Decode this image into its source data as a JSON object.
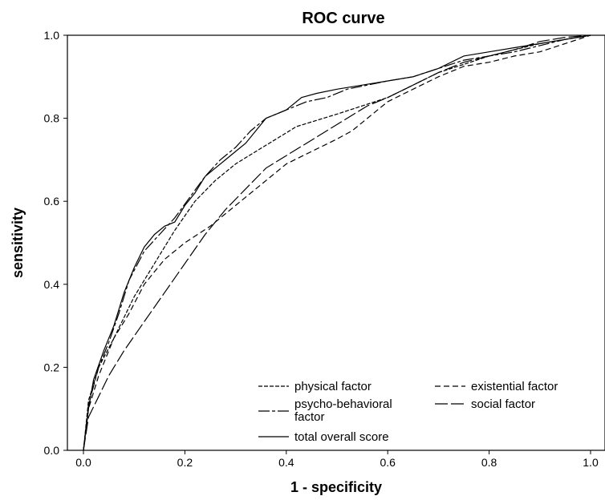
{
  "chart_data": {
    "type": "line",
    "title": "ROC curve",
    "xlabel": "1 - specificity",
    "ylabel": "sensitivity",
    "xlim": [
      0.0,
      1.0
    ],
    "ylim": [
      0.0,
      1.0
    ],
    "xticks": [
      "0.0",
      "0.2",
      "0.4",
      "0.6",
      "0.8",
      "1.0"
    ],
    "yticks": [
      "0.0",
      "0.2",
      "0.4",
      "0.6",
      "0.8",
      "1.0"
    ],
    "grid": false,
    "legend_position": "bottom-right",
    "colors": {
      "line": "#000000",
      "background": "#ffffff"
    },
    "series": [
      {
        "name": "physical factor",
        "dash": "short",
        "points": [
          [
            0,
            0
          ],
          [
            0.01,
            0.12
          ],
          [
            0.03,
            0.2
          ],
          [
            0.06,
            0.27
          ],
          [
            0.1,
            0.37
          ],
          [
            0.14,
            0.45
          ],
          [
            0.18,
            0.53
          ],
          [
            0.22,
            0.6
          ],
          [
            0.26,
            0.65
          ],
          [
            0.3,
            0.69
          ],
          [
            0.34,
            0.72
          ],
          [
            0.38,
            0.75
          ],
          [
            0.42,
            0.78
          ],
          [
            0.46,
            0.795
          ],
          [
            0.5,
            0.81
          ],
          [
            0.55,
            0.83
          ],
          [
            0.6,
            0.85
          ],
          [
            0.65,
            0.88
          ],
          [
            0.7,
            0.91
          ],
          [
            0.75,
            0.93
          ],
          [
            0.8,
            0.95
          ],
          [
            0.85,
            0.965
          ],
          [
            0.9,
            0.98
          ],
          [
            0.95,
            0.99
          ],
          [
            1,
            1
          ]
        ]
      },
      {
        "name": "existential factor",
        "dash": "medium",
        "points": [
          [
            0,
            0
          ],
          [
            0.01,
            0.1
          ],
          [
            0.03,
            0.18
          ],
          [
            0.06,
            0.27
          ],
          [
            0.09,
            0.33
          ],
          [
            0.12,
            0.4
          ],
          [
            0.16,
            0.46
          ],
          [
            0.2,
            0.5
          ],
          [
            0.25,
            0.54
          ],
          [
            0.3,
            0.59
          ],
          [
            0.35,
            0.64
          ],
          [
            0.4,
            0.69
          ],
          [
            0.45,
            0.72
          ],
          [
            0.5,
            0.75
          ],
          [
            0.53,
            0.77
          ],
          [
            0.56,
            0.8
          ],
          [
            0.6,
            0.84
          ],
          [
            0.65,
            0.87
          ],
          [
            0.7,
            0.9
          ],
          [
            0.75,
            0.925
          ],
          [
            0.8,
            0.935
          ],
          [
            0.85,
            0.95
          ],
          [
            0.9,
            0.96
          ],
          [
            0.95,
            0.98
          ],
          [
            1,
            1
          ]
        ]
      },
      {
        "name": "psycho-behavioral factor",
        "dash": "long-short",
        "points": [
          [
            0,
            0
          ],
          [
            0.01,
            0.11
          ],
          [
            0.03,
            0.2
          ],
          [
            0.05,
            0.26
          ],
          [
            0.07,
            0.33
          ],
          [
            0.09,
            0.41
          ],
          [
            0.12,
            0.48
          ],
          [
            0.15,
            0.52
          ],
          [
            0.18,
            0.56
          ],
          [
            0.21,
            0.61
          ],
          [
            0.24,
            0.66
          ],
          [
            0.27,
            0.7
          ],
          [
            0.3,
            0.73
          ],
          [
            0.33,
            0.77
          ],
          [
            0.36,
            0.8
          ],
          [
            0.4,
            0.82
          ],
          [
            0.44,
            0.84
          ],
          [
            0.48,
            0.85
          ],
          [
            0.52,
            0.87
          ],
          [
            0.56,
            0.88
          ],
          [
            0.6,
            0.89
          ],
          [
            0.65,
            0.9
          ],
          [
            0.7,
            0.92
          ],
          [
            0.75,
            0.94
          ],
          [
            0.8,
            0.95
          ],
          [
            0.85,
            0.96
          ],
          [
            0.9,
            0.975
          ],
          [
            0.95,
            0.99
          ],
          [
            1,
            1
          ]
        ]
      },
      {
        "name": "social factor",
        "dash": "long",
        "points": [
          [
            0,
            0
          ],
          [
            0.01,
            0.08
          ],
          [
            0.03,
            0.13
          ],
          [
            0.05,
            0.18
          ],
          [
            0.08,
            0.24
          ],
          [
            0.12,
            0.31
          ],
          [
            0.16,
            0.38
          ],
          [
            0.2,
            0.45
          ],
          [
            0.24,
            0.52
          ],
          [
            0.28,
            0.58
          ],
          [
            0.32,
            0.63
          ],
          [
            0.36,
            0.68
          ],
          [
            0.4,
            0.71
          ],
          [
            0.44,
            0.74
          ],
          [
            0.48,
            0.77
          ],
          [
            0.52,
            0.8
          ],
          [
            0.56,
            0.83
          ],
          [
            0.6,
            0.85
          ],
          [
            0.65,
            0.88
          ],
          [
            0.7,
            0.91
          ],
          [
            0.75,
            0.935
          ],
          [
            0.8,
            0.95
          ],
          [
            0.85,
            0.965
          ],
          [
            0.9,
            0.985
          ],
          [
            0.95,
            0.995
          ],
          [
            1,
            1
          ]
        ]
      },
      {
        "name": "total overall score",
        "dash": "solid",
        "points": [
          [
            0,
            0
          ],
          [
            0.01,
            0.1
          ],
          [
            0.02,
            0.17
          ],
          [
            0.04,
            0.24
          ],
          [
            0.06,
            0.3
          ],
          [
            0.08,
            0.38
          ],
          [
            0.1,
            0.44
          ],
          [
            0.12,
            0.49
          ],
          [
            0.14,
            0.52
          ],
          [
            0.16,
            0.54
          ],
          [
            0.18,
            0.55
          ],
          [
            0.2,
            0.59
          ],
          [
            0.22,
            0.62
          ],
          [
            0.24,
            0.66
          ],
          [
            0.26,
            0.68
          ],
          [
            0.28,
            0.7
          ],
          [
            0.3,
            0.72
          ],
          [
            0.32,
            0.74
          ],
          [
            0.34,
            0.77
          ],
          [
            0.36,
            0.8
          ],
          [
            0.38,
            0.81
          ],
          [
            0.4,
            0.82
          ],
          [
            0.43,
            0.85
          ],
          [
            0.46,
            0.86
          ],
          [
            0.5,
            0.87
          ],
          [
            0.55,
            0.88
          ],
          [
            0.6,
            0.89
          ],
          [
            0.65,
            0.9
          ],
          [
            0.7,
            0.92
          ],
          [
            0.75,
            0.95
          ],
          [
            0.8,
            0.96
          ],
          [
            0.85,
            0.97
          ],
          [
            0.9,
            0.98
          ],
          [
            0.95,
            0.99
          ],
          [
            1,
            1
          ]
        ]
      }
    ]
  }
}
